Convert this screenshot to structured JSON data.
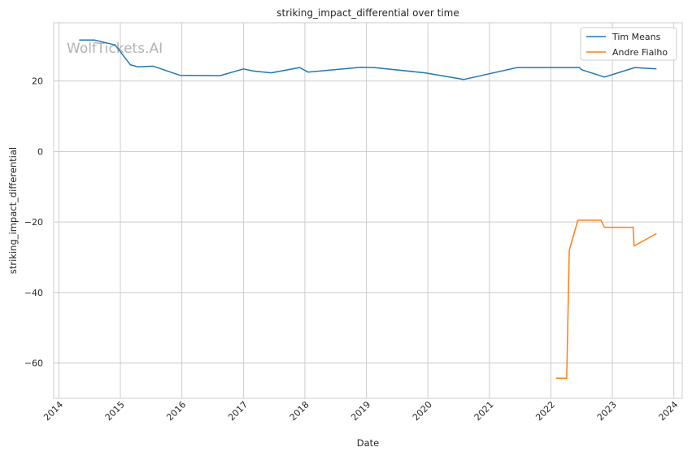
{
  "chart_data": {
    "type": "line",
    "title": "striking_impact_differential over time",
    "xlabel": "Date",
    "ylabel": "striking_impact_differential",
    "watermark": "WolfTickets.AI",
    "x_ticks": [
      "2014",
      "2015",
      "2016",
      "2017",
      "2018",
      "2019",
      "2020",
      "2021",
      "2022",
      "2023",
      "2024"
    ],
    "xlim": [
      "2013-12-01",
      "2024-02-20"
    ],
    "y_ticks": [
      20,
      0,
      -20,
      -40,
      -60
    ],
    "ylim": [
      -70,
      36.5
    ],
    "grid": true,
    "legend_position": "top-right",
    "series": [
      {
        "name": "Tim Means",
        "color": "#1f77b4",
        "points": [
          [
            "2014-05-01",
            31.6
          ],
          [
            "2014-08-01",
            31.6
          ],
          [
            "2014-12-01",
            30.2
          ],
          [
            "2015-03-01",
            24.6
          ],
          [
            "2015-04-15",
            24.0
          ],
          [
            "2015-07-15",
            24.2
          ],
          [
            "2015-12-20",
            21.6
          ],
          [
            "2016-08-15",
            21.5
          ],
          [
            "2017-01-01",
            23.4
          ],
          [
            "2017-03-01",
            22.8
          ],
          [
            "2017-06-15",
            22.3
          ],
          [
            "2017-12-01",
            23.8
          ],
          [
            "2018-01-20",
            22.5
          ],
          [
            "2018-12-01",
            23.9
          ],
          [
            "2019-02-15",
            23.8
          ],
          [
            "2019-12-15",
            22.3
          ],
          [
            "2020-08-01",
            20.4
          ],
          [
            "2021-06-15",
            23.8
          ],
          [
            "2022-06-20",
            23.8
          ],
          [
            "2022-07-01",
            23.2
          ],
          [
            "2022-11-15",
            21.1
          ],
          [
            "2023-05-15",
            23.8
          ],
          [
            "2023-09-20",
            23.4
          ]
        ]
      },
      {
        "name": "Andre Fialho",
        "color": "#ff7f0e",
        "points": [
          [
            "2022-02-01",
            -64.3
          ],
          [
            "2022-04-05",
            -64.3
          ],
          [
            "2022-04-20",
            -28.0
          ],
          [
            "2022-06-10",
            -19.5
          ],
          [
            "2022-10-25",
            -19.5
          ],
          [
            "2022-11-15",
            -21.5
          ],
          [
            "2023-05-05",
            -21.5
          ],
          [
            "2023-05-10",
            -26.8
          ],
          [
            "2023-09-20",
            -23.3
          ]
        ]
      }
    ]
  }
}
